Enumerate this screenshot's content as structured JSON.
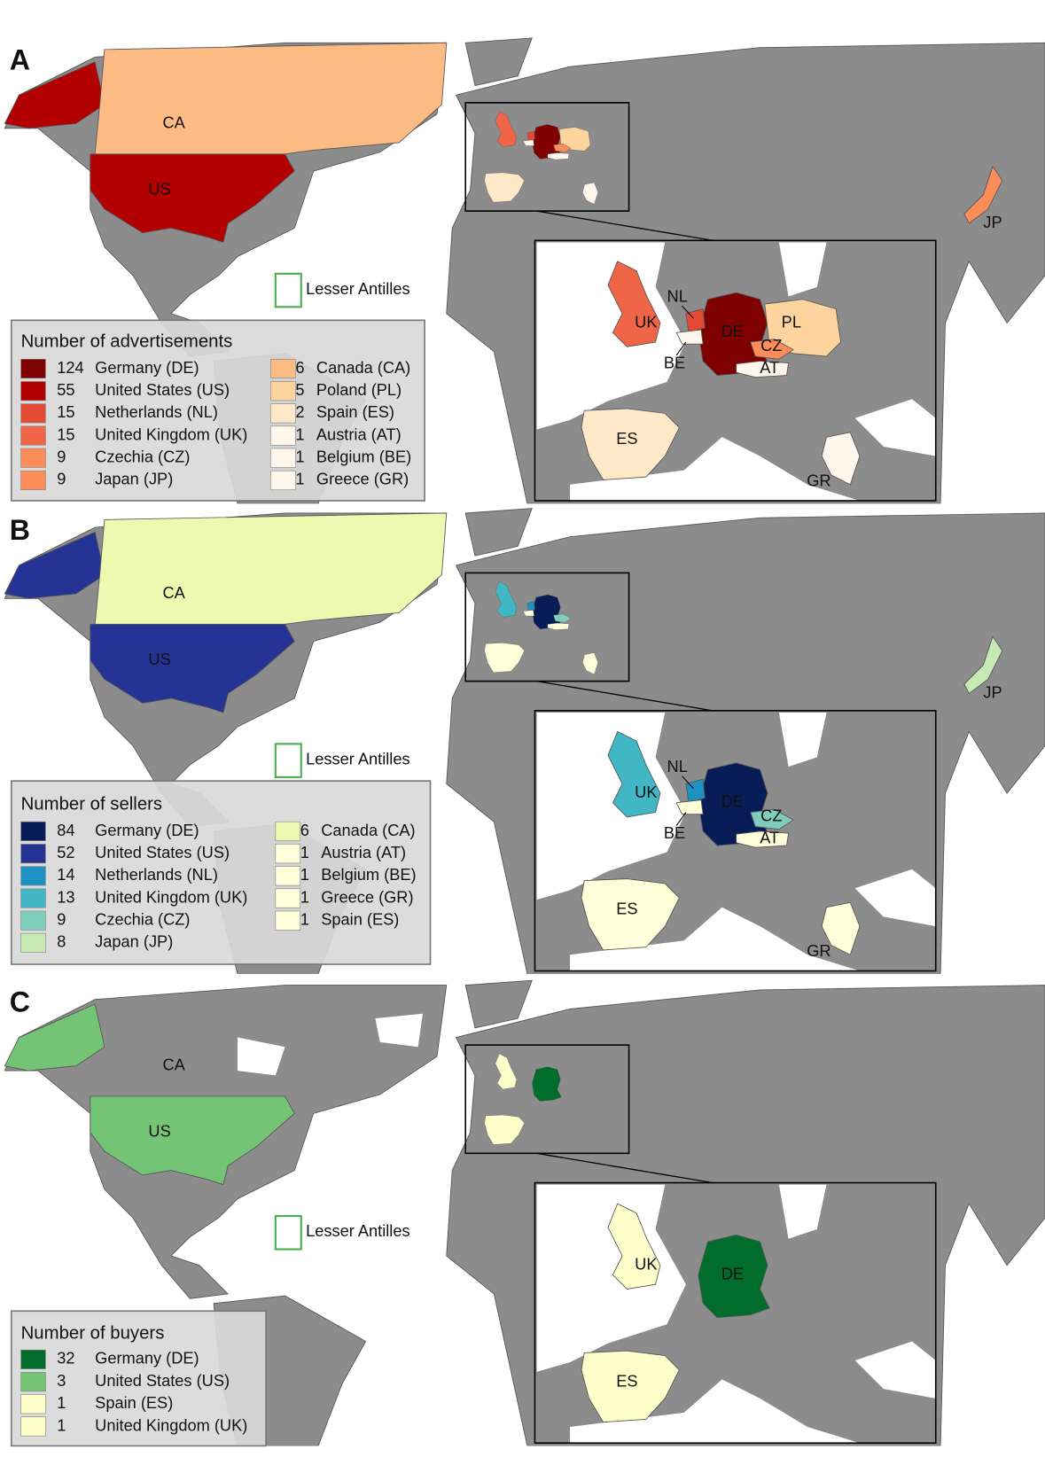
{
  "panels": [
    {
      "letter": "A",
      "legend": {
        "title": "Number of advertisements",
        "entries": [
          {
            "count": 124,
            "country": "Germany (DE)",
            "color": "#7f0000"
          },
          {
            "count": 55,
            "country": "United States (US)",
            "color": "#b30000"
          },
          {
            "count": 15,
            "country": "Netherlands (NL)",
            "color": "#e34a33"
          },
          {
            "count": 15,
            "country": "United Kingdom (UK)",
            "color": "#ef6548"
          },
          {
            "count": 9,
            "country": "Czechia (CZ)",
            "color": "#fc8d59"
          },
          {
            "count": 9,
            "country": "Japan (JP)",
            "color": "#fc8d59"
          },
          {
            "count": 6,
            "country": "Canada (CA)",
            "color": "#fdbb84"
          },
          {
            "count": 5,
            "country": "Poland (PL)",
            "color": "#fdd49e"
          },
          {
            "count": 2,
            "country": "Spain (ES)",
            "color": "#fee8c8"
          },
          {
            "count": 1,
            "country": "Austria (AT)",
            "color": "#fff7ec"
          },
          {
            "count": 1,
            "country": "Belgium (BE)",
            "color": "#fff7ec"
          },
          {
            "count": 1,
            "country": "Greece (GR)",
            "color": "#fff7ec"
          }
        ]
      },
      "labels": [
        "CA",
        "US",
        "Lesser Antilles",
        "JP",
        "NL",
        "UK",
        "DE",
        "PL",
        "BE",
        "CZ",
        "AT",
        "ES",
        "GR"
      ]
    },
    {
      "letter": "B",
      "legend": {
        "title": "Number of sellers",
        "entries": [
          {
            "count": 84,
            "country": "Germany (DE)",
            "color": "#081d58"
          },
          {
            "count": 52,
            "country": "United States (US)",
            "color": "#253494"
          },
          {
            "count": 14,
            "country": "Netherlands (NL)",
            "color": "#1d91c0"
          },
          {
            "count": 13,
            "country": "United Kingdom (UK)",
            "color": "#41b6c4"
          },
          {
            "count": 9,
            "country": "Czechia (CZ)",
            "color": "#7fcdbb"
          },
          {
            "count": 8,
            "country": "Japan (JP)",
            "color": "#c7e9b4"
          },
          {
            "count": 6,
            "country": "Canada (CA)",
            "color": "#edf8b1"
          },
          {
            "count": 1,
            "country": "Austria (AT)",
            "color": "#ffffd9"
          },
          {
            "count": 1,
            "country": "Belgium (BE)",
            "color": "#ffffd9"
          },
          {
            "count": 1,
            "country": "Greece (GR)",
            "color": "#ffffd9"
          },
          {
            "count": 1,
            "country": "Spain (ES)",
            "color": "#ffffd9"
          }
        ]
      },
      "labels": [
        "CA",
        "US",
        "Lesser Antilles",
        "JP",
        "NL",
        "UK",
        "DE",
        "CZ",
        "BE",
        "AT",
        "ES",
        "GR"
      ]
    },
    {
      "letter": "C",
      "legend": {
        "title": "Number of buyers",
        "entries": [
          {
            "count": 32,
            "country": "Germany (DE)",
            "color": "#006d2c"
          },
          {
            "count": 3,
            "country": "United States (US)",
            "color": "#74c476"
          },
          {
            "count": 1,
            "country": "Spain (ES)",
            "color": "#ffffcc"
          },
          {
            "count": 1,
            "country": "United Kingdom (UK)",
            "color": "#ffffcc"
          }
        ]
      },
      "labels": [
        "CA",
        "US",
        "Lesser Antilles",
        "UK",
        "DE",
        "ES"
      ]
    }
  ]
}
